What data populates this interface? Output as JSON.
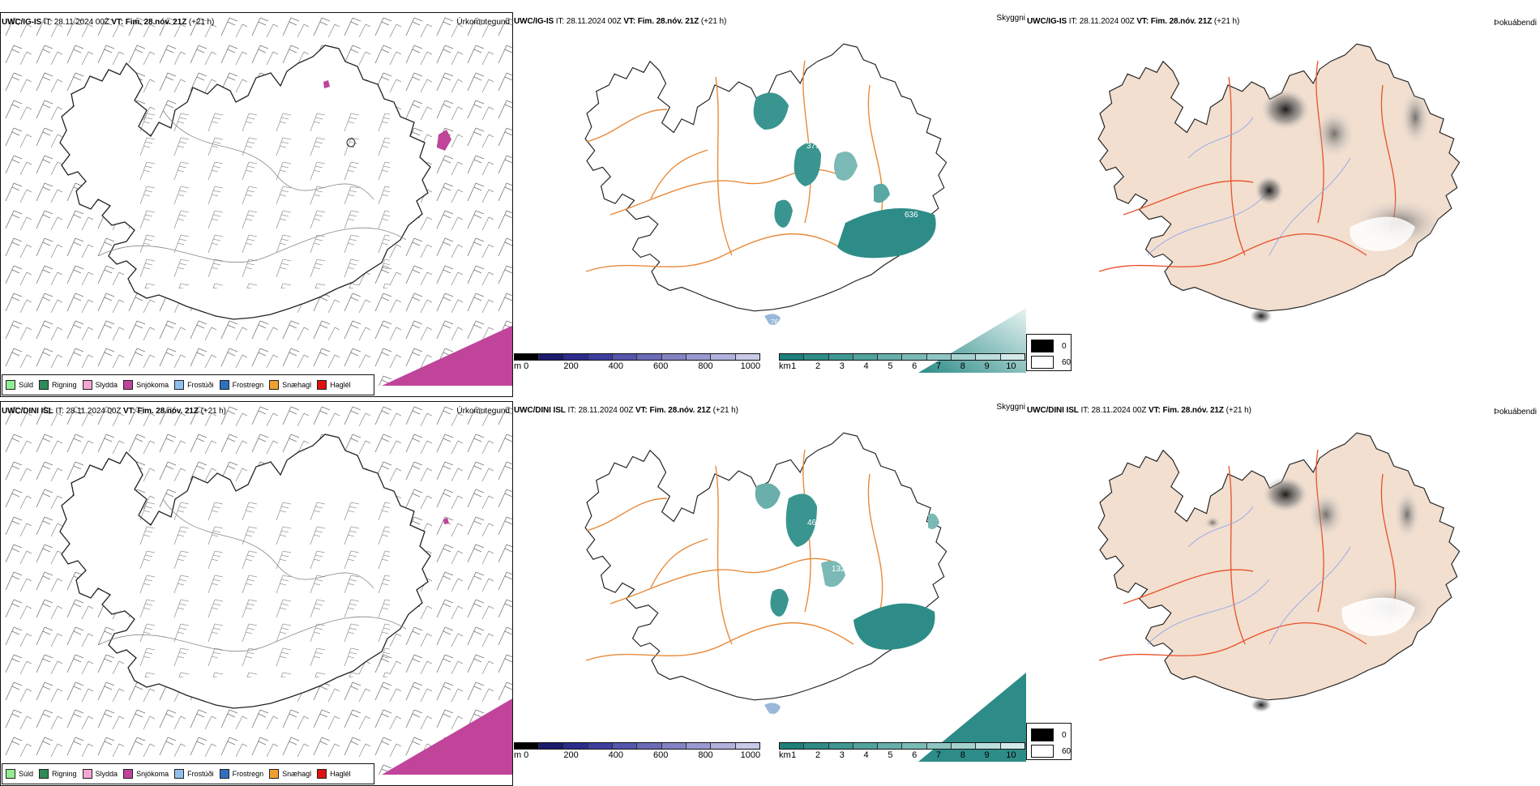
{
  "rows": [
    {
      "model": "UWC/IG-IS",
      "it_label": "IT:",
      "it_value": "28.11.2024 00Z",
      "vt_label": "VT:",
      "vt_value": "Fim. 28.nóv. 21Z",
      "lead": "(+21 h)",
      "panels": {
        "precip": {
          "corner": "Úrkomutegund"
        },
        "cloud": {
          "corner": "Skyggni",
          "labels": [
            "379",
            "387",
            "29",
            "636",
            "76"
          ]
        },
        "fog": {
          "corner": "Þokuábendi"
        }
      }
    },
    {
      "model": "UWC/DINI ISL",
      "it_label": "IT:",
      "it_value": "28.11.2024 00Z",
      "vt_label": "VT:",
      "vt_value": "Fim. 28.nóv. 21Z",
      "lead": "(+21 h)",
      "panels": {
        "precip": {
          "corner": "Úrkomutegund"
        },
        "cloud": {
          "corner": "Skyggni",
          "labels": [
            "460",
            "132",
            "49"
          ]
        },
        "fog": {
          "corner": "Þokuábendi"
        }
      }
    }
  ],
  "precip_legend": [
    {
      "label": "Súld",
      "color": "#90ee90"
    },
    {
      "label": "Rigning",
      "color": "#2e8b57"
    },
    {
      "label": "Slydda",
      "color": "#f4a6d2"
    },
    {
      "label": "Snjókoma",
      "color": "#c0449a"
    },
    {
      "label": "Frostúði",
      "color": "#8fbfef"
    },
    {
      "label": "Frostregn",
      "color": "#2f6fc0"
    },
    {
      "label": "Snæhagl",
      "color": "#f0a030"
    },
    {
      "label": "Haglél",
      "color": "#e01010"
    }
  ],
  "cloudbase_bar": {
    "unit": "m",
    "ticks": [
      "0",
      "200",
      "400",
      "600",
      "800",
      "1000"
    ],
    "colors": [
      "#000000",
      "#1a1a6e",
      "#2c2c8c",
      "#3d3d9e",
      "#5656ad",
      "#6b6bb7",
      "#8383c4",
      "#9a9ad0",
      "#b1b1dc",
      "#c9c9e8"
    ]
  },
  "visibility_bar": {
    "unit": "km",
    "ticks": [
      "1",
      "2",
      "3",
      "4",
      "5",
      "6",
      "7",
      "8",
      "9",
      "10"
    ],
    "colors": [
      "#1f7f7a",
      "#2f8b86",
      "#3f9792",
      "#52a29e",
      "#66aeaa",
      "#7abab6",
      "#8fc6c3",
      "#a5d2cf",
      "#bcdedc",
      "#d4eae9"
    ]
  },
  "fog_legend": [
    {
      "label": "0",
      "color": "#000000"
    },
    {
      "label": "60",
      "color": "#ffffff"
    }
  ]
}
